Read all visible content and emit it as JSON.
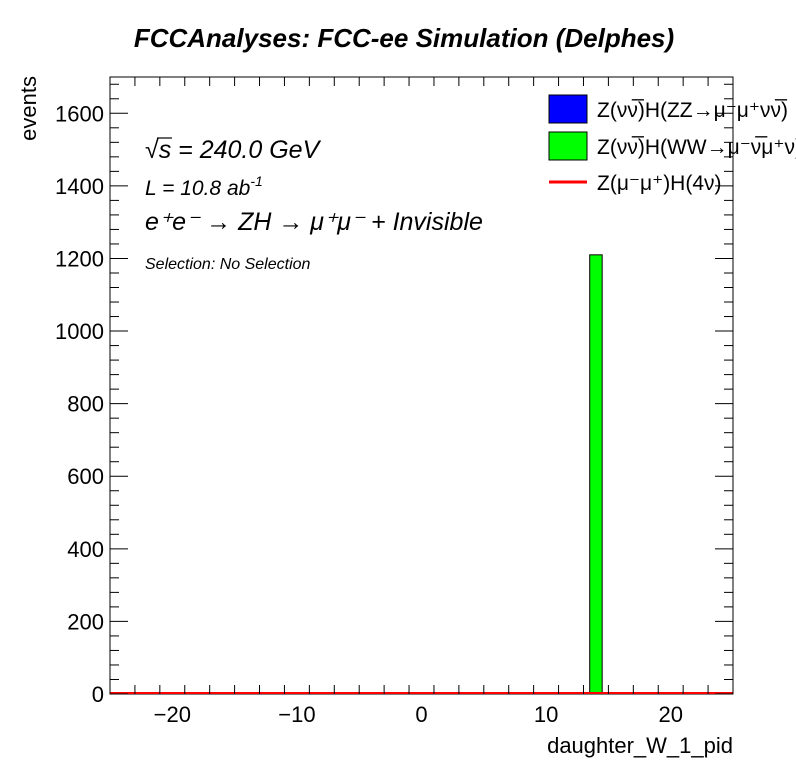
{
  "chart_data": {
    "type": "bar",
    "title": "FCCAnalyses: FCC-ee Simulation (Delphes)",
    "xlabel": "daughter_W_1_pid",
    "ylabel": "events",
    "xlim": [
      -25,
      25
    ],
    "ylim": [
      0,
      1700
    ],
    "x_ticks": [
      -20,
      -10,
      0,
      10,
      20
    ],
    "x_tick_labels": [
      "−20",
      "−10",
      "0",
      "10",
      "20"
    ],
    "y_ticks": [
      0,
      200,
      400,
      600,
      800,
      1000,
      1200,
      1400,
      1600
    ],
    "y_tick_labels": [
      "0",
      "200",
      "400",
      "600",
      "800",
      "1000",
      "1200",
      "1400",
      "1600"
    ],
    "grid": false,
    "legend_position": "top-right",
    "series": [
      {
        "name": "Z(νν̅)H(ZZ→μ⁻μ⁺νν̅)",
        "color": "#0000ff",
        "style": "fill",
        "bins": []
      },
      {
        "name": "Z(νν̅)H(WW→μ⁻ν̅μ⁺ν)",
        "color": "#00ff00",
        "style": "fill",
        "bins": [
          {
            "x0": 13.5,
            "x1": 14.5,
            "value": 1210
          }
        ]
      },
      {
        "name": "Z(μ⁻μ⁺)H(4ν)",
        "color": "#ff0000",
        "style": "line",
        "bins": []
      }
    ],
    "annotations": {
      "energy_prefix": "√",
      "energy_symbol": "s",
      "energy_value": " = 240.0 GeV",
      "lumi_text": "L = 10.8 ab",
      "lumi_sup": "-1",
      "process_text": "e⁺e⁻ → ZH → μ⁺μ⁻ + Invisible",
      "selection_text": "Selection: No Selection"
    }
  }
}
